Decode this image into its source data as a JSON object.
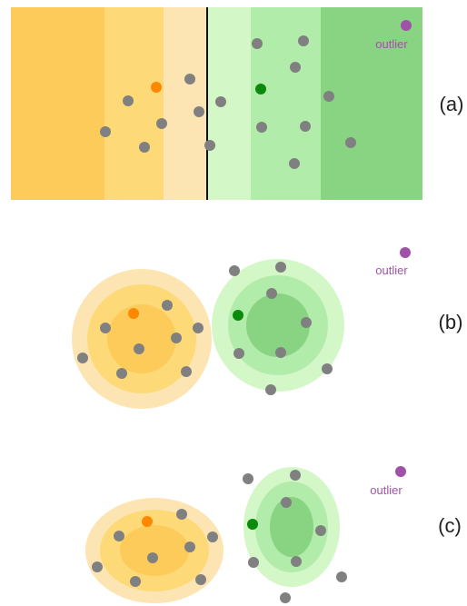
{
  "colors": {
    "orange_dark": "#fdcb5a",
    "orange_mid": "#fdda77",
    "orange_light": "#fde5b3",
    "green_light": "#d4f7c8",
    "green_mid": "#b2ecaa",
    "green_dark": "#88d483",
    "point_gray": "#808080",
    "point_orange": "#ff8800",
    "point_green": "#0b8a0b",
    "point_outlier": "#a052a8",
    "boundary": "#111111"
  },
  "panels": [
    {
      "id": "a",
      "label": "(a)",
      "outlier_label": "outlier"
    },
    {
      "id": "b",
      "label": "(b)",
      "outlier_label": "outlier"
    },
    {
      "id": "c",
      "label": "(c)",
      "outlier_label": "outlier"
    }
  ]
}
